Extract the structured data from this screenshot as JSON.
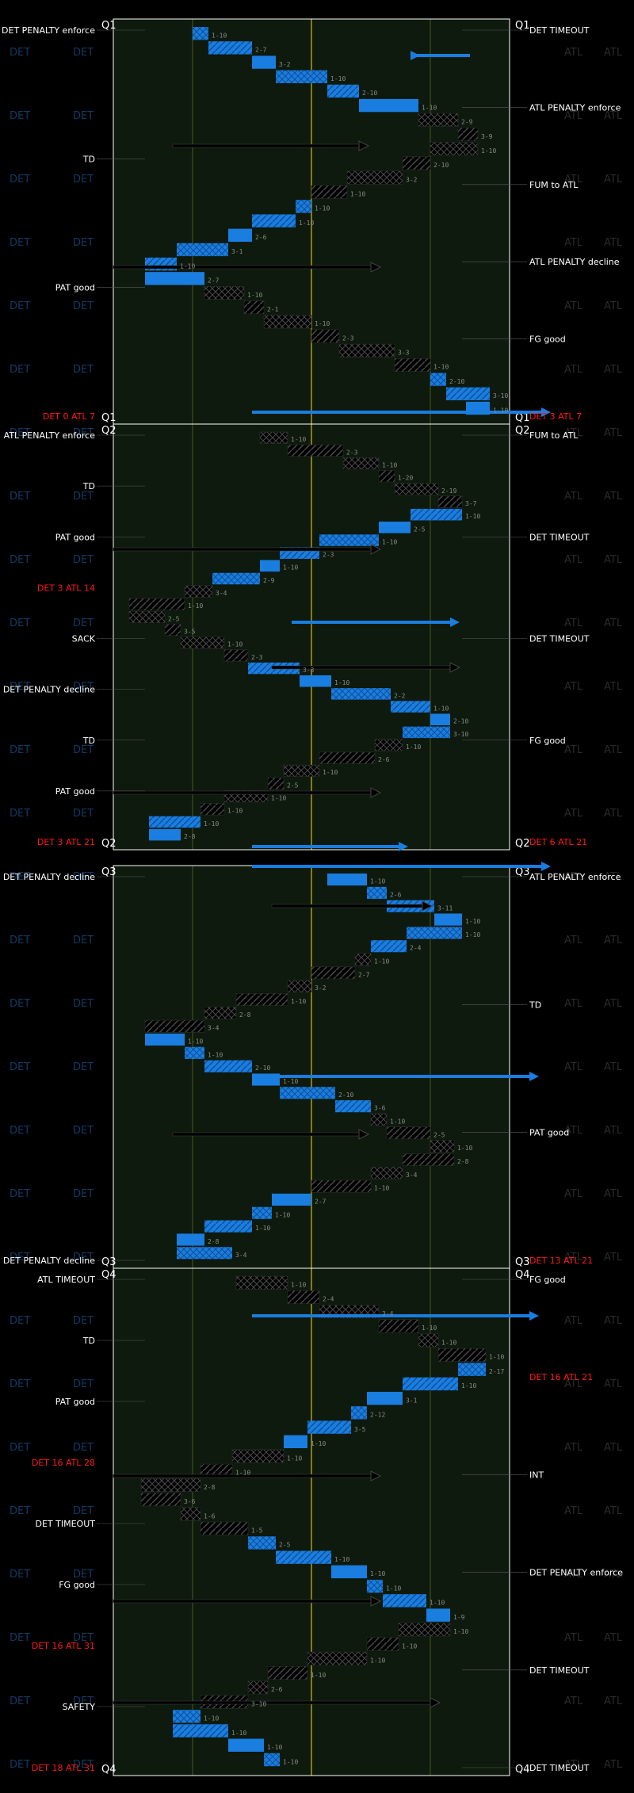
{
  "chart_data": {
    "type": "drive-chart",
    "teams": [
      "DET",
      "ATL"
    ],
    "colors": {
      "background": "#000000",
      "field": "#0d1a0d",
      "det": "#1a7de0",
      "atl": "#000000",
      "field_border": "#ffffff",
      "midfield_line": "#8a7a10",
      "redzone_line": "#4a5a1a",
      "score_text": "#ff1a1a",
      "event_text": "#ffffff"
    },
    "quarters": [
      "Q1",
      "Q2",
      "Q3",
      "Q4"
    ],
    "events": {
      "Q1": [
        {
          "side": "right",
          "text": "DET TIMEOUT"
        },
        {
          "side": "right",
          "text": "ATL PENALTY enforce"
        },
        {
          "side": "right",
          "text": "FUM to ATL"
        },
        {
          "side": "left",
          "text": "DET PENALTY enforce"
        },
        {
          "side": "left",
          "text": "TD"
        },
        {
          "side": "left",
          "text": "PAT good"
        },
        {
          "side": "left",
          "text": "DET 0 ATL 7",
          "score": true
        },
        {
          "side": "right",
          "text": "ATL PENALTY decline"
        },
        {
          "side": "right",
          "text": "FG good"
        },
        {
          "side": "right",
          "text": "DET 3 ATL 7",
          "score": true
        }
      ],
      "Q2": [
        {
          "side": "left",
          "text": "ATL PENALTY enforce"
        },
        {
          "side": "left",
          "text": "TD"
        },
        {
          "side": "left",
          "text": "PAT good"
        },
        {
          "side": "left",
          "text": "DET 3 ATL 14",
          "score": true
        },
        {
          "side": "left",
          "text": "SACK"
        },
        {
          "side": "left",
          "text": "DET PENALTY decline"
        },
        {
          "side": "right",
          "text": "FUM to ATL"
        },
        {
          "side": "left",
          "text": "TD"
        },
        {
          "side": "left",
          "text": "PAT good"
        },
        {
          "side": "left",
          "text": "DET 3 ATL 21",
          "score": true
        },
        {
          "side": "right",
          "text": "DET TIMEOUT"
        },
        {
          "side": "right",
          "text": "DET TIMEOUT"
        },
        {
          "side": "right",
          "text": "FG good"
        },
        {
          "side": "right",
          "text": "DET 6 ATL 21",
          "score": true
        }
      ],
      "Q3": [
        {
          "side": "right",
          "text": "ATL PENALTY enforce"
        },
        {
          "side": "right",
          "text": "TD"
        },
        {
          "side": "right",
          "text": "PAT good"
        },
        {
          "side": "right",
          "text": "DET 13 ATL 21",
          "score": true
        },
        {
          "side": "left",
          "text": "DET PENALTY decline"
        },
        {
          "side": "left",
          "text": "DET PENALTY decline"
        }
      ],
      "Q4": [
        {
          "side": "right",
          "text": "FG good"
        },
        {
          "side": "right",
          "text": "DET 16 ATL 21",
          "score": true
        },
        {
          "side": "left",
          "text": "ATL TIMEOUT"
        },
        {
          "side": "left",
          "text": "TD"
        },
        {
          "side": "left",
          "text": "PAT good"
        },
        {
          "side": "left",
          "text": "DET 16 ATL 28",
          "score": true
        },
        {
          "side": "right",
          "text": "INT"
        },
        {
          "side": "left",
          "text": "DET TIMEOUT"
        },
        {
          "side": "left",
          "text": "FG good"
        },
        {
          "side": "left",
          "text": "DET 16 ATL 31",
          "score": true
        },
        {
          "side": "right",
          "text": "DET PENALTY enforce"
        },
        {
          "side": "right",
          "text": "DET TIMEOUT"
        },
        {
          "side": "left",
          "text": "SAFETY"
        },
        {
          "side": "left",
          "text": "DET 18 ATL 31",
          "score": true
        },
        {
          "side": "right",
          "text": "DET TIMEOUT"
        }
      ]
    },
    "down_labels": {
      "Q1": [
        "1-10",
        "2-7",
        "3-2",
        "1-10",
        "2-10",
        "1-10",
        "2-9",
        "3-9",
        "1-10",
        "2-10",
        "3-2",
        "1-10",
        "1-10",
        "1-10",
        "2-6",
        "3-1",
        "1-10",
        "2-7",
        "1-10",
        "2-1",
        "1-10",
        "2-3",
        "3-3",
        "1-10",
        "2-10",
        "3-10",
        "1-10"
      ],
      "Q2": [
        "1-10",
        "2-3",
        "1-10",
        "1-20",
        "2-19",
        "3-7",
        "1-10",
        "2-5",
        "1-10",
        "2-3",
        "1-10",
        "2-9",
        "3-4",
        "1-10",
        "2-5",
        "3-5",
        "1-10",
        "2-3",
        "3-3",
        "1-10",
        "2-2",
        "1-10",
        "2-10",
        "3-10",
        "1-10",
        "2-6",
        "1-10",
        "2-5",
        "1-10",
        "1-10",
        "1-10",
        "2-8"
      ],
      "Q3": [
        "1-10",
        "2-6",
        "3-11",
        "1-10",
        "1-10",
        "2-4",
        "1-10",
        "2-7",
        "3-2",
        "1-10",
        "2-8",
        "3-4",
        "1-10",
        "1-10",
        "2-10",
        "1-10",
        "2-10",
        "3-6",
        "1-10",
        "2-5",
        "1-10",
        "2-8",
        "3-4",
        "1-10",
        "2-7",
        "1-10",
        "1-10",
        "2-8",
        "3-4"
      ],
      "Q4": [
        "1-10",
        "2-4",
        "3-4",
        "1-10",
        "1-10",
        "1-10",
        "2-17",
        "1-10",
        "3-1",
        "2-12",
        "3-5",
        "1-10",
        "1-10",
        "1-10",
        "2-8",
        "3-6",
        "1-6",
        "1-5",
        "2-5",
        "1-10",
        "1-10",
        "1-10",
        "1-10",
        "1-9",
        "1-10",
        "1-10",
        "1-10",
        "1-10",
        "2-6",
        "3-10",
        "1-10",
        "1-10",
        "1-10",
        "1-10"
      ]
    },
    "ghost_labels": {
      "left": [
        "DET",
        "DET"
      ],
      "right": [
        "ATL",
        "ATL"
      ]
    }
  }
}
